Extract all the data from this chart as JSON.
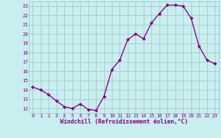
{
  "x": [
    0,
    1,
    2,
    3,
    4,
    5,
    6,
    7,
    8,
    9,
    10,
    11,
    12,
    13,
    14,
    15,
    16,
    17,
    18,
    19,
    20,
    21,
    22,
    23
  ],
  "y": [
    14.3,
    14.0,
    13.5,
    12.8,
    12.2,
    12.0,
    12.5,
    11.9,
    11.8,
    13.3,
    16.2,
    17.2,
    19.4,
    20.0,
    19.5,
    21.2,
    22.2,
    23.1,
    23.1,
    23.0,
    21.7,
    18.7,
    17.2,
    16.8
  ],
  "line_color": "#800080",
  "marker": "D",
  "markersize": 2.2,
  "linewidth": 1.0,
  "bg_color": "#c8eef0",
  "grid_color": "#9fbfbf",
  "xlabel": "Windchill (Refroidissement éolien,°C)",
  "xlabel_color": "#800080",
  "tick_color": "#800080",
  "xlim": [
    -0.5,
    23.5
  ],
  "ylim": [
    11.5,
    23.5
  ],
  "yticks": [
    12,
    13,
    14,
    15,
    16,
    17,
    18,
    19,
    20,
    21,
    22,
    23
  ],
  "xticks": [
    0,
    1,
    2,
    3,
    4,
    5,
    6,
    7,
    8,
    9,
    10,
    11,
    12,
    13,
    14,
    15,
    16,
    17,
    18,
    19,
    20,
    21,
    22,
    23
  ],
  "tick_fontsize": 5.0,
  "xlabel_fontsize": 6.0
}
